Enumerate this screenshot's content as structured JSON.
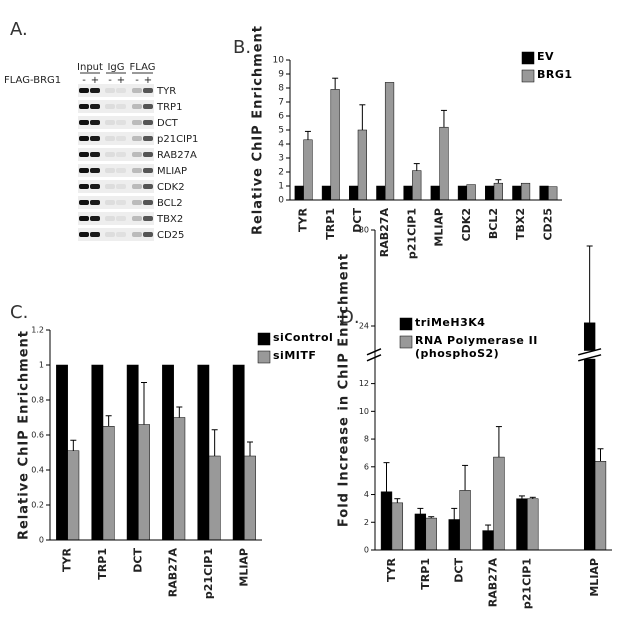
{
  "panel_a": {
    "label": "A.",
    "row_label": "FLAG-BRG1",
    "groups": [
      "Input",
      "IgG",
      "FLAG"
    ],
    "signs": [
      "-",
      "+",
      "-",
      "+",
      "-",
      "+"
    ],
    "genes": [
      "TYR",
      "TRP1",
      "DCT",
      "p21CIP1",
      "RAB27A",
      "MLIAP",
      "CDK2",
      "BCL2",
      "TBX2",
      "CD25"
    ]
  },
  "chart_data": [
    {
      "type": "bar",
      "label": "B.",
      "y_label": "Relative ChIP Enrichment",
      "categories": [
        "TYR",
        "TRP1",
        "DCT",
        "RAB27A",
        "p21CIP1",
        "MLIAP",
        "CDK2",
        "BCL2",
        "TBX2",
        "CD25"
      ],
      "series": [
        {
          "name": "EV",
          "color": "#000000",
          "values": [
            1,
            1,
            1,
            1,
            1,
            1,
            1,
            1,
            1,
            1
          ]
        },
        {
          "name": "BRG1",
          "color": "#999999",
          "values": [
            4.3,
            7.9,
            5.0,
            8.4,
            2.1,
            5.2,
            1.1,
            1.2,
            1.2,
            0.95
          ],
          "errors": [
            0.6,
            0.8,
            1.8,
            null,
            0.5,
            1.2,
            null,
            0.25,
            null,
            null
          ]
        }
      ],
      "ylim": [
        0,
        10
      ],
      "yticks": [
        0,
        1,
        2,
        3,
        4,
        5,
        6,
        7,
        8,
        9,
        10
      ]
    },
    {
      "type": "bar",
      "label": "C.",
      "y_label": "Relative ChIP Enrichment",
      "categories": [
        "TYR",
        "TRP1",
        "DCT",
        "RAB27A",
        "p21CIP1",
        "MLIAP"
      ],
      "series": [
        {
          "name": "siControl",
          "color": "#000000",
          "values": [
            1,
            1,
            1,
            1,
            1,
            1
          ]
        },
        {
          "name": "siMITF",
          "color": "#999999",
          "values": [
            0.51,
            0.65,
            0.66,
            0.7,
            0.48,
            0.48
          ],
          "errors": [
            0.06,
            0.06,
            0.24,
            0.06,
            0.15,
            0.08
          ]
        }
      ],
      "ylim": [
        0,
        1.2
      ],
      "yticks": [
        0,
        0.2,
        0.4,
        0.6,
        0.8,
        1,
        1.2
      ]
    },
    {
      "type": "bar",
      "label": "D.",
      "y_label": "Fold Increase in ChIP Enrichment",
      "categories": [
        "TYR",
        "TRP1",
        "DCT",
        "RAB27A",
        "p21CIP1",
        null,
        "MLIAP"
      ],
      "series": [
        {
          "name": "triMeH3K4",
          "color": "#000000",
          "values": [
            4.2,
            2.6,
            2.2,
            1.4,
            3.7,
            null,
            24.2
          ],
          "errors": [
            2.1,
            0.4,
            0.8,
            0.4,
            0.2,
            null,
            4.8
          ]
        },
        {
          "name": "RNA Polymerase II (phosphoS2)",
          "color": "#999999",
          "values": [
            3.4,
            2.3,
            4.3,
            6.7,
            3.7,
            null,
            6.4
          ],
          "errors": [
            0.3,
            0.1,
            1.8,
            2.2,
            0.1,
            null,
            0.9
          ]
        }
      ],
      "ylim": [
        0,
        30
      ],
      "y_break": [
        12,
        24
      ],
      "yticks": [
        0,
        2,
        4,
        6,
        8,
        10,
        12,
        24,
        30
      ]
    }
  ]
}
